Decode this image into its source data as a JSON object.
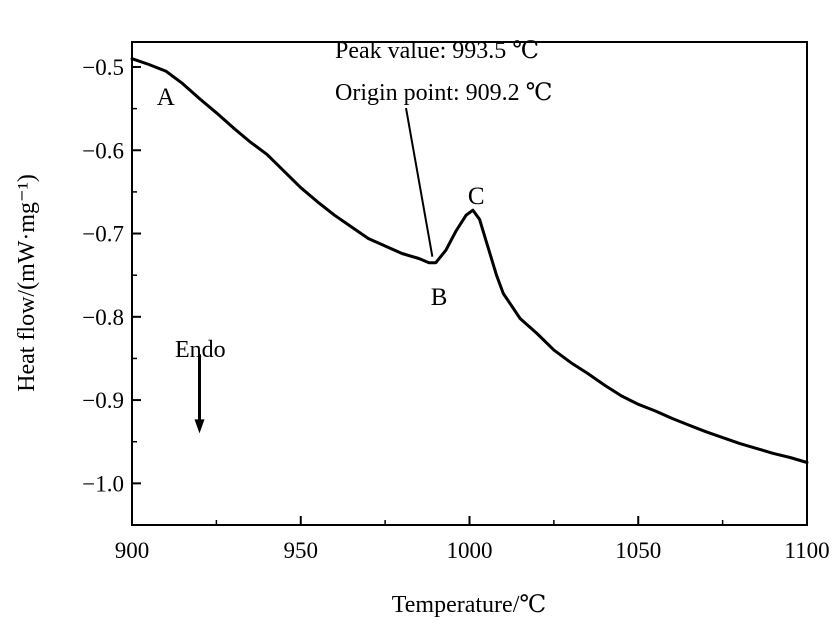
{
  "chart_data": {
    "type": "line",
    "xlabel": "Temperature/℃",
    "ylabel": "Heat flow/(mW·mg⁻¹)",
    "xlim": [
      900,
      1100
    ],
    "ylim": [
      -1.05,
      -0.47
    ],
    "x_ticks": [
      900,
      950,
      1000,
      1050,
      1100
    ],
    "x_tick_labels": [
      "900",
      "950",
      "1000",
      "1050",
      "1100"
    ],
    "y_ticks": [
      -0.5,
      -0.6,
      -0.7,
      -0.8,
      -0.9,
      -1.0
    ],
    "y_tick_labels": [
      "−0.5",
      "−0.6",
      "−0.7",
      "−0.8",
      "−0.9",
      "−1.0"
    ],
    "grid": false,
    "series": [
      {
        "x": [
          900,
          905,
          910,
          915,
          920,
          925,
          930,
          935,
          940,
          945,
          950,
          955,
          960,
          965,
          970,
          975,
          980,
          985,
          988,
          990,
          993,
          996,
          999,
          1001,
          1003,
          1005,
          1008,
          1010,
          1015,
          1020,
          1025,
          1030,
          1035,
          1040,
          1045,
          1050,
          1055,
          1060,
          1065,
          1070,
          1075,
          1080,
          1085,
          1090,
          1095,
          1100
        ],
        "y": [
          -0.49,
          -0.497,
          -0.505,
          -0.52,
          -0.538,
          -0.555,
          -0.573,
          -0.59,
          -0.605,
          -0.625,
          -0.645,
          -0.662,
          -0.678,
          -0.692,
          -0.706,
          -0.715,
          -0.724,
          -0.73,
          -0.735,
          -0.735,
          -0.72,
          -0.697,
          -0.678,
          -0.672,
          -0.683,
          -0.71,
          -0.75,
          -0.772,
          -0.802,
          -0.82,
          -0.84,
          -0.855,
          -0.868,
          -0.882,
          -0.895,
          -0.905,
          -0.913,
          -0.922,
          -0.93,
          -0.938,
          -0.945,
          -0.952,
          -0.958,
          -0.964,
          -0.969,
          -0.975
        ]
      }
    ],
    "annotations": {
      "peak_value": "Peak value: 993.5 ℃",
      "origin_point": "Origin point: 909.2 ℃",
      "endo": "Endo",
      "point_A": "A",
      "point_B": "B",
      "point_C": "C"
    },
    "annotation_anchor": {
      "x": 989,
      "y": -0.735
    },
    "endo_arrow": {
      "x": 920,
      "y_from": -0.845,
      "y_to": -0.94
    },
    "point_labels": [
      {
        "key": "point_A",
        "x": 910,
        "y": -0.535
      },
      {
        "key": "point_B",
        "x": 991,
        "y": -0.775
      },
      {
        "key": "point_C",
        "x": 1002,
        "y": -0.654
      }
    ]
  }
}
